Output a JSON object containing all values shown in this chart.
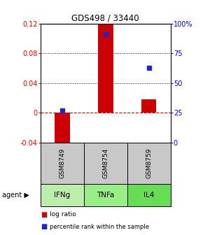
{
  "title": "GDS498 / 33440",
  "samples": [
    "GSM8749",
    "GSM8754",
    "GSM8759"
  ],
  "agents": [
    "IFNg",
    "TNFa",
    "IL4"
  ],
  "log_ratios": [
    -0.045,
    0.122,
    0.018
  ],
  "percentile_ranks": [
    0.27,
    0.91,
    0.63
  ],
  "ylim_left": [
    -0.04,
    0.12
  ],
  "ylim_right": [
    0.0,
    1.0
  ],
  "bar_color": "#cc0000",
  "dot_color": "#2222cc",
  "yticks_left": [
    -0.04,
    0.0,
    0.04,
    0.08,
    0.12
  ],
  "ytick_labels_left": [
    "-0.04",
    "0",
    "0.04",
    "0.08",
    "0.12"
  ],
  "yticks_right": [
    0.0,
    0.25,
    0.5,
    0.75,
    1.0
  ],
  "ytick_labels_right": [
    "0",
    "25",
    "50",
    "75",
    "100%"
  ],
  "dotted_lines": [
    0.04,
    0.08
  ],
  "zero_line_color": "#cc0000",
  "sample_box_color": "#c8c8c8",
  "agent_colors": [
    "#bbeeaa",
    "#99ee88",
    "#66dd55"
  ],
  "background_color": "#ffffff",
  "bar_width": 0.35
}
